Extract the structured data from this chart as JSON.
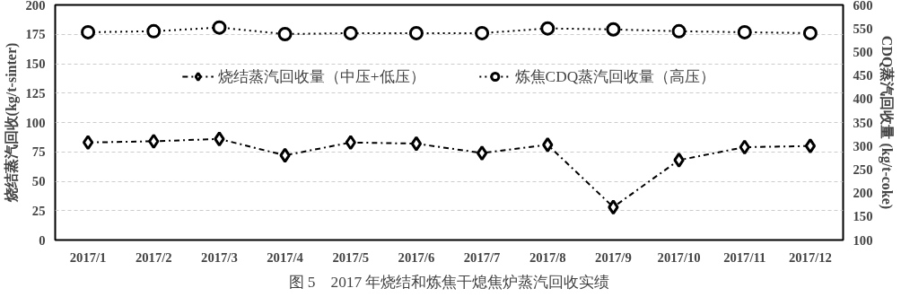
{
  "chart_data": {
    "type": "line",
    "title": "图 5　2017 年烧结和炼焦干熄焦炉蒸汽回收实绩",
    "ylabel": "烧结蒸汽回收(kg/t-sinter)",
    "y2label": "CDQ蒸汽回收量 (kg/t-coke)",
    "categories": [
      "2017/1",
      "2017/2",
      "2017/3",
      "2017/4",
      "2017/5",
      "2017/6",
      "2017/7",
      "2017/8",
      "2017/9",
      "2017/10",
      "2017/11",
      "2017/12"
    ],
    "series": [
      {
        "name": "烧结蒸汽回收量（中压+低压）",
        "color": "#000000",
        "marker": "diamond",
        "line_style": "dashdot",
        "values": [
          83,
          84,
          86,
          72,
          83,
          82,
          74,
          81,
          28,
          68,
          79,
          80
        ]
      },
      {
        "name": "炼焦CDQ蒸汽回收量（高压）",
        "color": "#000000",
        "marker": "circle",
        "line_style": "dotted",
        "axis": "y2",
        "values": [
          542,
          544,
          552,
          538,
          540,
          540,
          540,
          550,
          548,
          544,
          542,
          540
        ]
      }
    ],
    "ylim": [
      0,
      200
    ],
    "yticks": [
      0,
      25,
      50,
      75,
      100,
      125,
      150,
      175,
      200
    ],
    "y2lim": [
      100,
      600
    ],
    "y2ticks": [
      100,
      150,
      200,
      250,
      300,
      350,
      400,
      450,
      500,
      550,
      600
    ],
    "grid": "y",
    "legend": "top"
  }
}
